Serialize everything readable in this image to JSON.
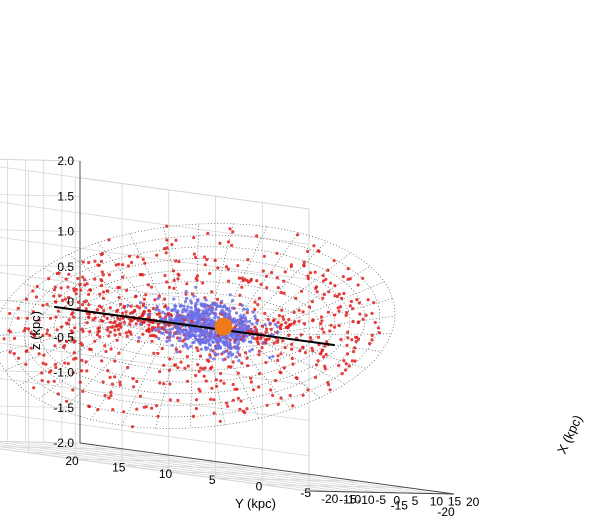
{
  "chart_data": {
    "type": "scatter",
    "projection": "3d",
    "grid": true,
    "xlabel": "X (kpc)",
    "ylabel": "Y (kpc)",
    "zlabel": "z (kpc)",
    "xlim": [
      -20,
      20
    ],
    "ylim": [
      -20,
      20
    ],
    "zlim": [
      -2.0,
      2.0
    ],
    "x_ticks": [
      "-20",
      "-15",
      "-10",
      "-5",
      "0",
      "5",
      "10",
      "15",
      "20"
    ],
    "y_ticks": [
      "20",
      "15",
      "10",
      "5",
      "0",
      "-5",
      "-10",
      "-15",
      "-20"
    ],
    "z_ticks": [
      "2.0",
      "1.5",
      "1.0",
      "0.5",
      "0",
      "-0.5",
      "-1.0",
      "-1.5",
      "-2.0"
    ],
    "series": [
      {
        "color": "#e02020",
        "marker": "dot",
        "note_count_approx": 900
      },
      {
        "color": "#6a6ee8",
        "marker": "dot",
        "note_count_approx": 600
      }
    ],
    "overlays": {
      "warped_disk_mesh": {
        "color": "#444444",
        "style": "dotted",
        "outer_radius_kpc": 20
      },
      "sun_marker": {
        "color": "#ef7a1a",
        "x": 8,
        "y": 0,
        "z": 0
      },
      "line_of_nodes": {
        "color": "#000000",
        "from": [
          0,
          15,
          0
        ],
        "to": [
          0,
          -15,
          0
        ]
      }
    }
  }
}
